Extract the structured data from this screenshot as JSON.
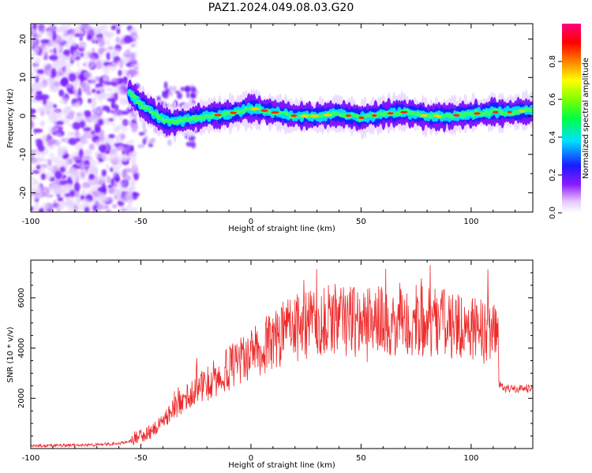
{
  "title": "PAZ1.2024.049.08.03.G20",
  "chart_data": [
    {
      "type": "heatmap",
      "xlabel": "Height of straight line (km)",
      "ylabel": "Frequency (Hz)",
      "xlim": [
        -100,
        128
      ],
      "ylim": [
        -25,
        24
      ],
      "xticks": [
        -100,
        -50,
        0,
        50,
        100
      ],
      "yticks": [
        -20,
        -10,
        0,
        10,
        20
      ],
      "colorbar": {
        "label": "Normalized spectral amplitude",
        "range": [
          0.0,
          1.0
        ],
        "ticks": [
          0.0,
          0.2,
          0.4,
          0.6,
          0.8
        ],
        "colormap": "rainbow (white - violet - blue - cyan - green - yellow - red - magenta)"
      },
      "ridge": {
        "description_points_x": [
          -55,
          -50,
          -45,
          -40,
          -35,
          -30,
          -25,
          -20,
          -10,
          0,
          10,
          20,
          30,
          40,
          50,
          60,
          70,
          80,
          90,
          100,
          110,
          120,
          128
        ],
        "frequency_hz": [
          6,
          3,
          1,
          -1,
          -1.5,
          -1,
          -0.5,
          0,
          0.5,
          2,
          1,
          0,
          0,
          0.5,
          -0.5,
          0.5,
          1,
          0,
          0,
          0.5,
          1,
          1,
          1.5
        ]
      }
    },
    {
      "type": "line",
      "xlabel": "Height of straight line (km)",
      "ylabel": "SNR (10 * v/v)",
      "xlim": [
        -100,
        128
      ],
      "ylim": [
        0,
        7500
      ],
      "xticks": [
        -100,
        -50,
        0,
        50,
        100
      ],
      "yticks": [
        2000,
        4000,
        6000
      ],
      "series_color": "#ee2a2a",
      "series": [
        {
          "x": [
            -100,
            -90,
            -80,
            -70,
            -60,
            -55,
            -50,
            -45,
            -40,
            -35,
            -30,
            -25,
            -20,
            -15,
            -10,
            -5,
            0,
            5,
            10,
            15,
            20,
            25,
            30,
            35,
            40,
            45,
            50,
            55,
            60,
            65,
            70,
            75,
            80,
            85,
            90,
            95,
            100,
            105,
            110,
            112,
            113,
            115,
            120,
            125,
            128
          ],
          "values": [
            100,
            120,
            130,
            150,
            200,
            300,
            500,
            700,
            1100,
            1600,
            2000,
            2300,
            2600,
            2900,
            3200,
            3500,
            3800,
            4000,
            4300,
            4600,
            4800,
            4900,
            5000,
            5000,
            5000,
            5100,
            5000,
            5000,
            5100,
            5000,
            5000,
            5000,
            5100,
            5000,
            4900,
            4800,
            4800,
            4700,
            4600,
            4500,
            2600,
            2400,
            2350,
            2400,
            2350
          ]
        }
      ]
    }
  ]
}
